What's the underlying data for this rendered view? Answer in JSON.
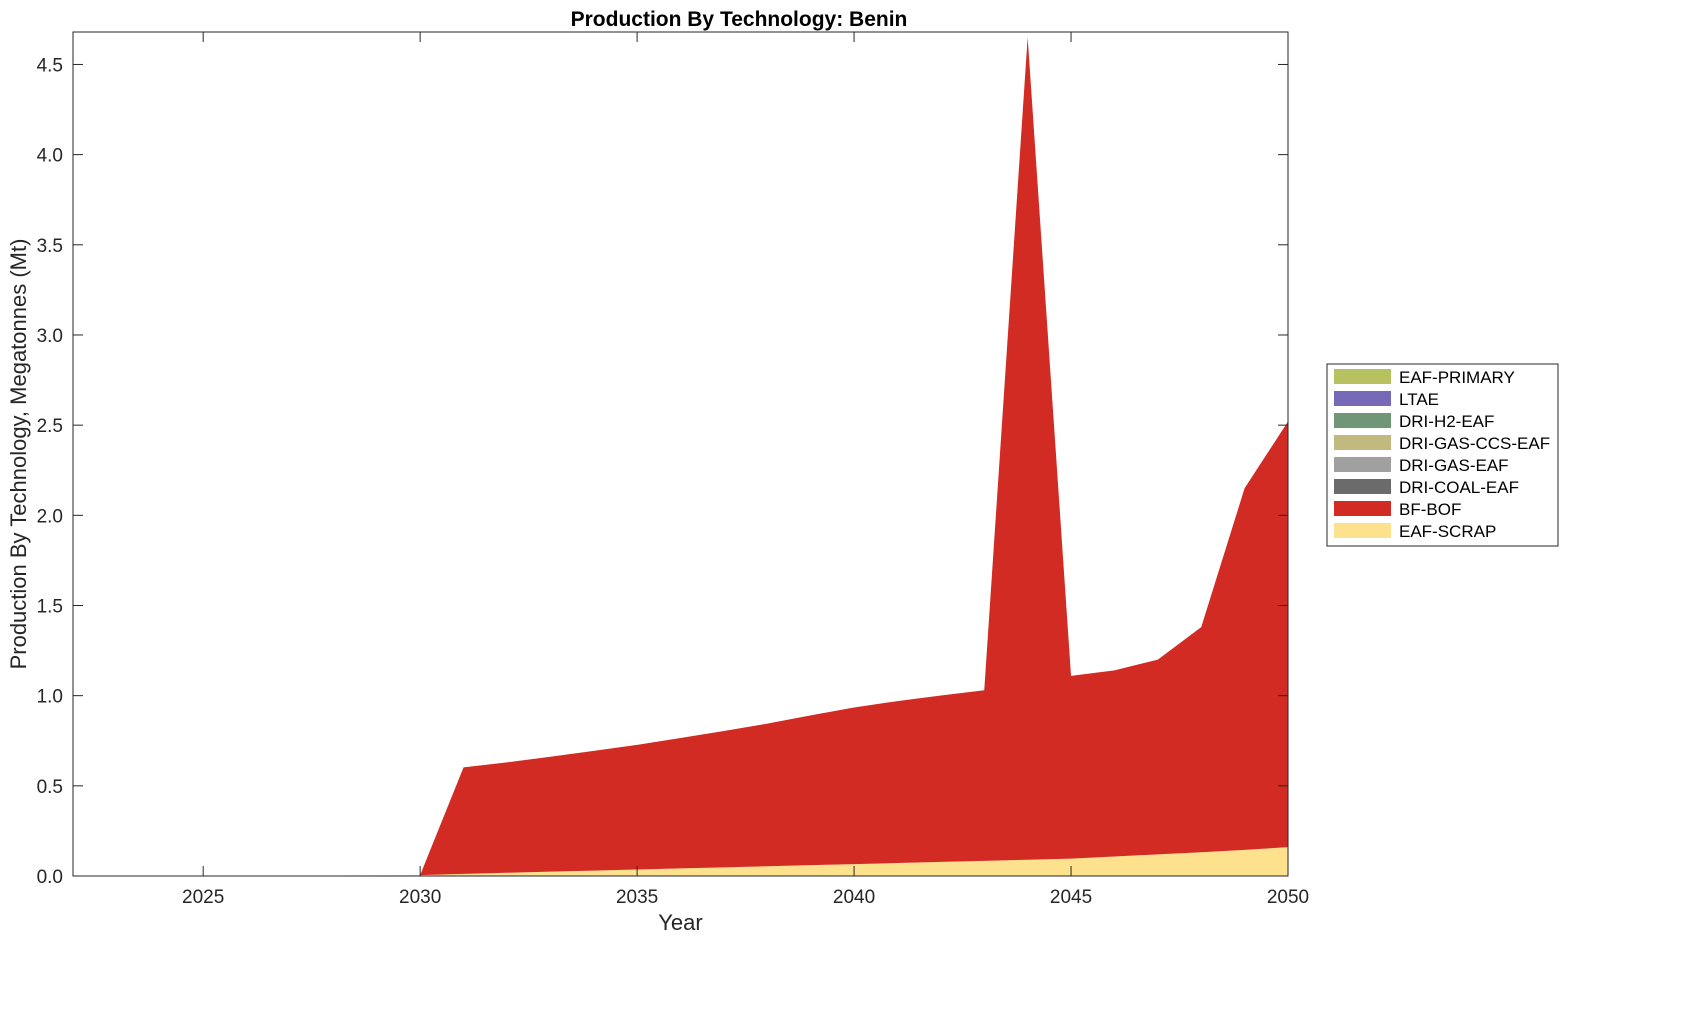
{
  "chart_data": {
    "type": "area",
    "title": "Production By Technology: Benin",
    "xlabel": "Year",
    "ylabel": "Production By Technology, Megatonnes (Mt)",
    "xlim": [
      2022,
      2050
    ],
    "ylim": [
      0,
      4.68
    ],
    "xticks": [
      2025,
      2030,
      2035,
      2040,
      2045,
      2050
    ],
    "yticks": [
      0.0,
      0.5,
      1.0,
      1.5,
      2.0,
      2.5,
      3.0,
      3.5,
      4.0,
      4.5
    ],
    "ytick_labels": [
      "0.0",
      "0.5",
      "1.0",
      "1.5",
      "2.0",
      "2.5",
      "3.0",
      "3.5",
      "4.0",
      "4.5"
    ],
    "grid": false,
    "legend_position": "outside-right",
    "stacked": true,
    "x": [
      2022,
      2023,
      2024,
      2025,
      2026,
      2027,
      2028,
      2029,
      2030,
      2031,
      2032,
      2033,
      2034,
      2035,
      2036,
      2037,
      2038,
      2039,
      2040,
      2041,
      2042,
      2043,
      2044,
      2045,
      2046,
      2047,
      2048,
      2049,
      2050
    ],
    "series": [
      {
        "name": "EAF-SCRAP",
        "color": "#FDE18C",
        "values": [
          0,
          0,
          0,
          0,
          0.001,
          0.002,
          0.003,
          0.004,
          0.005,
          0.012,
          0.018,
          0.024,
          0.03,
          0.036,
          0.042,
          0.048,
          0.054,
          0.06,
          0.066,
          0.072,
          0.078,
          0.084,
          0.09,
          0.096,
          0.108,
          0.12,
          0.132,
          0.145,
          0.16
        ]
      },
      {
        "name": "BF-BOF",
        "color": "#D22B23",
        "values": [
          0,
          0,
          0,
          0,
          0,
          0,
          0,
          0,
          0,
          0.59,
          0.612,
          0.637,
          0.664,
          0.691,
          0.723,
          0.756,
          0.791,
          0.831,
          0.868,
          0.898,
          0.923,
          0.946,
          4.56,
          1.014,
          1.032,
          1.08,
          1.248,
          2.005,
          2.36
        ]
      },
      {
        "name": "DRI-COAL-EAF",
        "color": "#6B6B6B",
        "values": [
          0,
          0,
          0,
          0,
          0,
          0,
          0,
          0,
          0,
          0,
          0,
          0,
          0,
          0,
          0,
          0,
          0,
          0,
          0,
          0,
          0,
          0,
          0,
          0,
          0,
          0,
          0,
          0,
          0
        ]
      },
      {
        "name": "DRI-GAS-EAF",
        "color": "#A0A0A0",
        "values": [
          0,
          0,
          0,
          0,
          0,
          0,
          0,
          0,
          0,
          0,
          0,
          0,
          0,
          0,
          0,
          0,
          0,
          0,
          0,
          0,
          0,
          0,
          0,
          0,
          0,
          0,
          0,
          0,
          0
        ]
      },
      {
        "name": "DRI-GAS-CCS-EAF",
        "color": "#C2B97E",
        "values": [
          0,
          0,
          0,
          0,
          0,
          0,
          0,
          0,
          0,
          0,
          0,
          0,
          0,
          0,
          0,
          0,
          0,
          0,
          0,
          0,
          0,
          0,
          0,
          0,
          0,
          0,
          0,
          0,
          0
        ]
      },
      {
        "name": "DRI-H2-EAF",
        "color": "#6E9677",
        "values": [
          0,
          0,
          0,
          0,
          0,
          0,
          0,
          0,
          0,
          0,
          0,
          0,
          0,
          0,
          0,
          0,
          0,
          0,
          0,
          0,
          0,
          0,
          0,
          0,
          0,
          0,
          0,
          0,
          0
        ]
      },
      {
        "name": "LTAE",
        "color": "#7569B8",
        "values": [
          0,
          0,
          0,
          0,
          0,
          0,
          0,
          0,
          0,
          0,
          0,
          0,
          0,
          0,
          0,
          0,
          0,
          0,
          0,
          0,
          0,
          0,
          0,
          0,
          0,
          0,
          0,
          0,
          0
        ]
      },
      {
        "name": "EAF-PRIMARY",
        "color": "#B7C160",
        "values": [
          0,
          0,
          0,
          0,
          0,
          0,
          0,
          0,
          0,
          0,
          0,
          0,
          0,
          0,
          0,
          0,
          0,
          0,
          0,
          0,
          0,
          0,
          0,
          0,
          0,
          0,
          0,
          0,
          0
        ]
      }
    ],
    "legend_order": [
      "EAF-PRIMARY",
      "LTAE",
      "DRI-H2-EAF",
      "DRI-GAS-CCS-EAF",
      "DRI-GAS-EAF",
      "DRI-COAL-EAF",
      "BF-BOF",
      "EAF-SCRAP"
    ]
  }
}
